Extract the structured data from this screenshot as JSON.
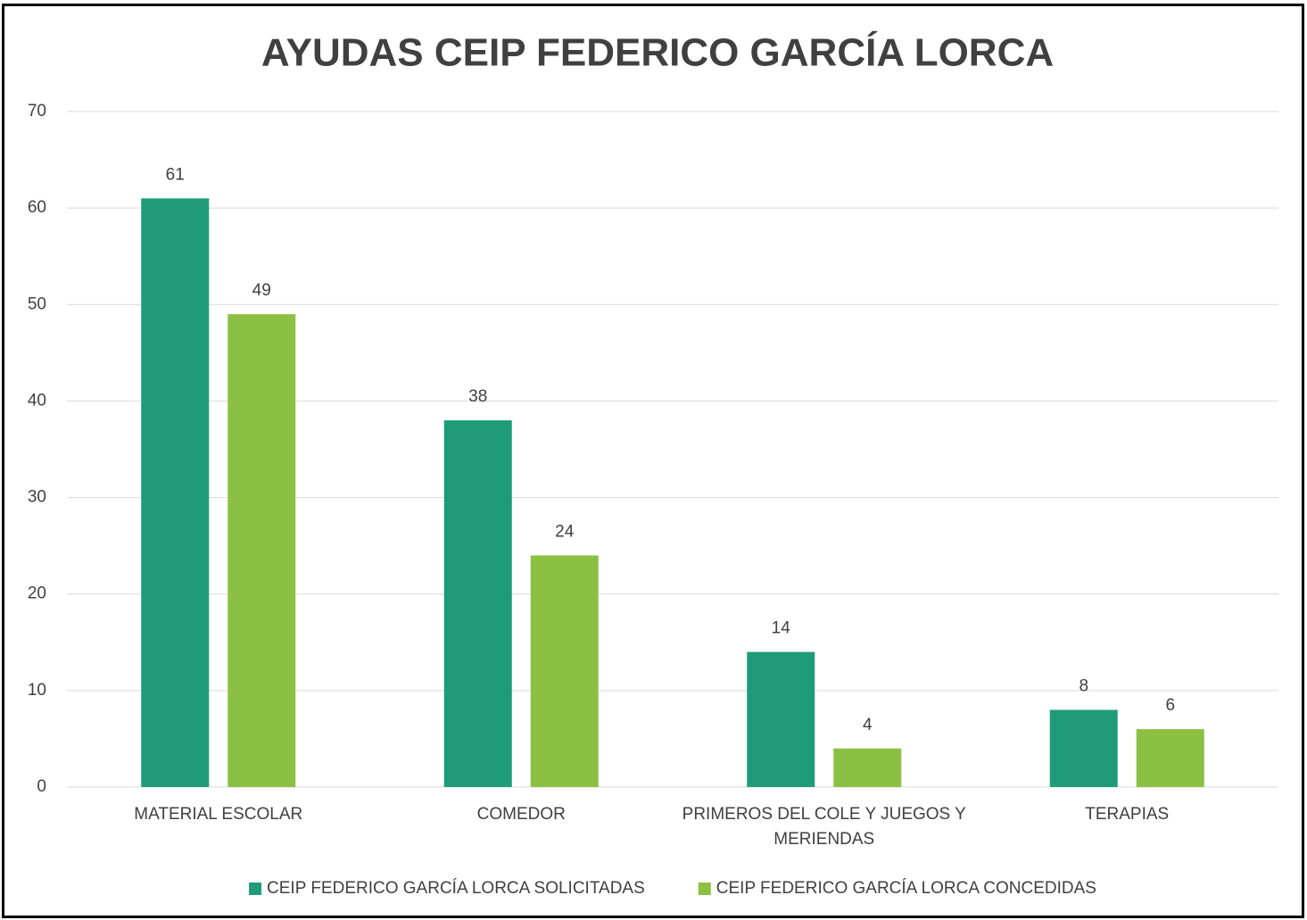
{
  "chart_data": {
    "type": "bar",
    "title": "AYUDAS CEIP FEDERICO GARCÍA LORCA",
    "categories": [
      "MATERIAL ESCOLAR",
      "COMEDOR",
      "PRIMEROS DEL COLE Y JUEGOS Y MERIENDAS",
      "TERAPIAS"
    ],
    "series": [
      {
        "name": "CEIP FEDERICO GARCÍA LORCA SOLICITADAS",
        "color": "#1f9b7a",
        "values": [
          61,
          38,
          14,
          8
        ]
      },
      {
        "name": "CEIP FEDERICO GARCÍA LORCA CONCEDIDAS",
        "color": "#8cc043",
        "values": [
          49,
          24,
          4,
          6
        ]
      }
    ],
    "ylim": [
      0,
      70
    ],
    "yticks": [
      0,
      10,
      20,
      30,
      40,
      50,
      60,
      70
    ],
    "grid": true,
    "legend": "bottom"
  }
}
